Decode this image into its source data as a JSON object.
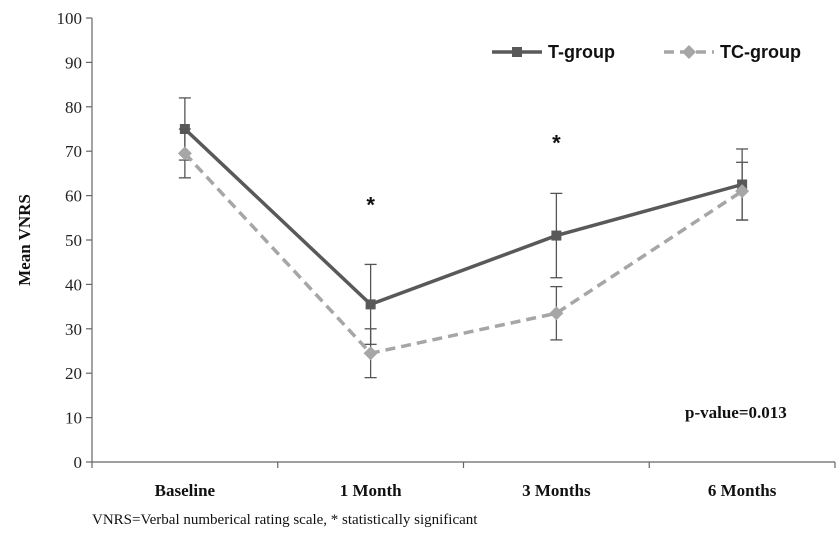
{
  "chart_data": {
    "type": "line",
    "title": "",
    "xlabel": "",
    "ylabel": "Mean VNRS",
    "ylim": [
      0,
      100
    ],
    "yticks": [
      0,
      10,
      20,
      30,
      40,
      50,
      60,
      70,
      80,
      90,
      100
    ],
    "categories": [
      "Baseline",
      "1 Month",
      "3 Months",
      "6 Months"
    ],
    "grid": false,
    "legend_position": "top-right",
    "series": [
      {
        "name": "T-group",
        "values": [
          75,
          35.5,
          51,
          62.5
        ],
        "error": [
          7,
          9,
          9.5,
          8
        ],
        "color": "#595959",
        "line_style": "solid",
        "marker": "square"
      },
      {
        "name": "TC-group",
        "values": [
          69.5,
          24.5,
          33.5,
          61
        ],
        "error": [
          5.5,
          5.5,
          6,
          6.5
        ],
        "color": "#a6a6a6",
        "line_style": "dashed",
        "marker": "diamond"
      }
    ],
    "significance": [
      {
        "category": "1 Month",
        "label": "*",
        "value": 58
      },
      {
        "category": "3 Months",
        "label": "*",
        "value": 72
      }
    ],
    "annotation": "p-value=0.013"
  },
  "footnote": "VNRS=Verbal numberical rating scale, * statistically significant"
}
